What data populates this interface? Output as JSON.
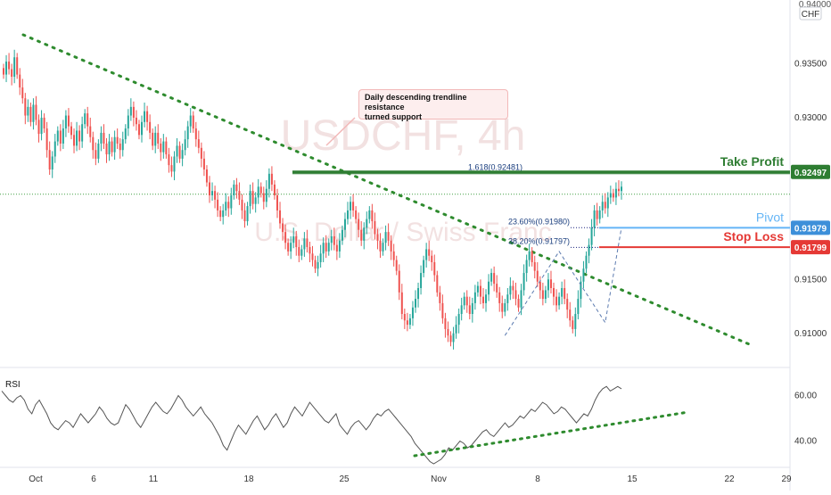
{
  "chart_data": [
    {
      "type": "candlestick",
      "symbol_watermark": "USDCHF, 4h",
      "name_watermark": "U.S. Dollar / Swiss Franc",
      "currency_label": "CHF",
      "top_price_partial": "0.94000",
      "y_ticks": [
        "0.93500",
        "0.93000",
        "0.91500",
        "0.91000"
      ],
      "ylim": [
        0.9075,
        0.9405
      ],
      "x_ticks": [
        "Oct",
        "6",
        "11",
        "18",
        "25",
        "Nov",
        "8",
        "15",
        "22",
        "29"
      ],
      "levels": [
        {
          "label": "Take Profit",
          "value": 0.92497,
          "value_label": "0.92497",
          "color": "#2e7d32"
        },
        {
          "label": "Pivot",
          "value": 0.91979,
          "value_label": "0.91979",
          "color": "#64b5f6"
        },
        {
          "label": "Stop Loss",
          "value": 0.91799,
          "value_label": "0.91799",
          "color": "#e53935"
        }
      ],
      "fib_labels": [
        {
          "text": "1.618(0.92481)",
          "value": 0.92481
        },
        {
          "text": "23.60%(0.91980)",
          "value": 0.9198
        },
        {
          "text": "38.20%(0.91797)",
          "value": 0.91797
        }
      ],
      "current_price": 0.9229,
      "annotation": {
        "line1": "Daily descending trendline resistance",
        "line2": "turned support"
      },
      "trendline": {
        "start": [
          0.0,
          0.9372
        ],
        "end": [
          69.0,
          0.9085
        ]
      },
      "candles_close": [
        0.934,
        0.9352,
        0.9345,
        0.9338,
        0.9356,
        0.934,
        0.9328,
        0.9318,
        0.9302,
        0.931,
        0.9296,
        0.9312,
        0.9298,
        0.9285,
        0.93,
        0.929,
        0.927,
        0.9252,
        0.9264,
        0.9278,
        0.9288,
        0.9276,
        0.929,
        0.9302,
        0.9292,
        0.9284,
        0.9274,
        0.9288,
        0.9278,
        0.9294,
        0.9304,
        0.9292,
        0.9282,
        0.927,
        0.9262,
        0.9276,
        0.9286,
        0.9276,
        0.9266,
        0.9278,
        0.9268,
        0.9282,
        0.9276,
        0.927,
        0.928,
        0.929,
        0.9302,
        0.931,
        0.93,
        0.9294,
        0.9284,
        0.9296,
        0.9306,
        0.9296,
        0.9286,
        0.9274,
        0.9286,
        0.9276,
        0.9268,
        0.9278,
        0.9266,
        0.9256,
        0.925,
        0.9264,
        0.9274,
        0.9262,
        0.927,
        0.928,
        0.9292,
        0.9302,
        0.929,
        0.928,
        0.9272,
        0.9262,
        0.9252,
        0.924,
        0.9228,
        0.9232,
        0.9224,
        0.9214,
        0.9208,
        0.9214,
        0.9222,
        0.9216,
        0.9228,
        0.9238,
        0.9232,
        0.9224,
        0.9214,
        0.9204,
        0.9218,
        0.9232,
        0.922,
        0.9226,
        0.9236,
        0.923,
        0.9222,
        0.9234,
        0.9248,
        0.9238,
        0.9228,
        0.9214,
        0.9202,
        0.9194,
        0.9184,
        0.9176,
        0.9184,
        0.919,
        0.918,
        0.9172,
        0.9178,
        0.9188,
        0.918,
        0.9174,
        0.9168,
        0.916,
        0.9166,
        0.9174,
        0.9184,
        0.9176,
        0.9184,
        0.919,
        0.9182,
        0.9176,
        0.9186,
        0.9196,
        0.9206,
        0.9214,
        0.9222,
        0.9214,
        0.9206,
        0.9196,
        0.9186,
        0.9198,
        0.9206,
        0.9214,
        0.9204,
        0.9192,
        0.9186,
        0.9176,
        0.9184,
        0.9194,
        0.9186,
        0.9176,
        0.9168,
        0.9158,
        0.9138,
        0.9118,
        0.9112,
        0.9108,
        0.9114,
        0.9124,
        0.9132,
        0.9142,
        0.9156,
        0.9168,
        0.9178,
        0.9172,
        0.9166,
        0.9154,
        0.9138,
        0.9128,
        0.9114,
        0.9104,
        0.9098,
        0.9092,
        0.91,
        0.9108,
        0.9118,
        0.9126,
        0.9134,
        0.9126,
        0.9118,
        0.9128,
        0.9138,
        0.9144,
        0.9134,
        0.9128,
        0.9136,
        0.9148,
        0.9156,
        0.9146,
        0.9138,
        0.9128,
        0.912,
        0.9128,
        0.9136,
        0.9144,
        0.914,
        0.9132,
        0.9124,
        0.914,
        0.9156,
        0.9168,
        0.9176,
        0.9166,
        0.9158,
        0.9148,
        0.914,
        0.9132,
        0.914,
        0.915,
        0.9142,
        0.9134,
        0.9126,
        0.9134,
        0.9142,
        0.9132,
        0.9122,
        0.9112,
        0.9104,
        0.9118,
        0.9132,
        0.9148,
        0.916,
        0.9172,
        0.9182,
        0.9198,
        0.9214,
        0.9206,
        0.9214,
        0.9222,
        0.9216,
        0.9226,
        0.923,
        0.9226,
        0.9234,
        0.9232,
        0.9236
      ]
    },
    {
      "type": "line",
      "indicator": "RSI",
      "label": "RSI",
      "y_ticks": [
        "60.00",
        "40.00"
      ],
      "ylim": [
        30,
        70
      ],
      "trendline": {
        "start": [
          0.55,
          30
        ],
        "end": [
          0.96,
          52
        ]
      },
      "values": [
        62,
        60,
        58,
        57,
        59,
        60,
        58,
        54,
        52,
        56,
        58,
        55,
        52,
        48,
        46,
        45,
        47,
        49,
        48,
        46,
        49,
        52,
        50,
        48,
        50,
        52,
        55,
        53,
        50,
        48,
        47,
        48,
        52,
        56,
        54,
        51,
        48,
        46,
        49,
        52,
        55,
        57,
        55,
        53,
        52,
        54,
        57,
        60,
        58,
        55,
        53,
        51,
        53,
        55,
        52,
        50,
        48,
        45,
        42,
        38,
        36,
        40,
        44,
        47,
        45,
        43,
        46,
        49,
        51,
        48,
        45,
        47,
        50,
        52,
        49,
        46,
        48,
        52,
        55,
        53,
        51,
        54,
        57,
        55,
        53,
        51,
        49,
        48,
        50,
        52,
        47,
        45,
        43,
        46,
        48,
        49,
        47,
        45,
        47,
        50,
        52,
        51,
        53,
        54,
        52,
        50,
        48,
        46,
        44,
        42,
        39,
        37,
        35,
        33,
        31,
        30,
        31,
        32,
        34,
        37,
        36,
        38,
        40,
        39,
        37,
        38,
        40,
        42,
        44,
        45,
        43,
        42,
        44,
        46,
        48,
        46,
        47,
        49,
        51,
        50,
        52,
        54,
        53,
        55,
        57,
        56,
        54,
        52,
        53,
        55,
        54,
        52,
        50,
        48,
        50,
        52,
        51,
        54,
        58,
        61,
        63,
        64,
        62,
        63,
        64,
        63
      ]
    }
  ]
}
